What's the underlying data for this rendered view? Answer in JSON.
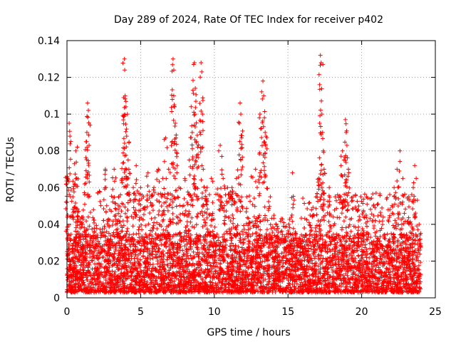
{
  "chart_data": {
    "type": "scatter",
    "title": "Day 289 of 2024, Rate Of TEC Index for receiver p402",
    "xlabel": "GPS time / hours",
    "ylabel": "ROTI / TECUs",
    "xlim": [
      0,
      25
    ],
    "ylim": [
      0,
      0.14
    ],
    "x_ticks": [
      0,
      5,
      10,
      15,
      20,
      25
    ],
    "x_tick_labels": [
      "0",
      "5",
      "10",
      "15",
      "20",
      "25"
    ],
    "y_ticks": [
      0,
      0.02,
      0.04,
      0.06,
      0.08,
      0.1,
      0.12,
      0.14
    ],
    "y_tick_labels": [
      "0",
      "0.02",
      "0.04",
      "0.06",
      "0.08",
      "0.1",
      "0.12",
      "0.14"
    ],
    "grid": true,
    "marker": "+",
    "color": "#ff0000",
    "x_data_range": [
      0,
      24
    ],
    "series": [
      {
        "name": "ROTI",
        "points": [
          [
            0.02,
            0.066
          ],
          [
            0.05,
            0.065
          ],
          [
            0.15,
            0.095
          ],
          [
            0.2,
            0.088
          ],
          [
            0.4,
            0.055
          ],
          [
            0.5,
            0.073
          ],
          [
            0.55,
            0.062
          ],
          [
            0.6,
            0.08
          ],
          [
            0.7,
            0.082
          ],
          [
            0.8,
            0.047
          ],
          [
            1.0,
            0.04
          ],
          [
            1.2,
            0.062
          ],
          [
            1.3,
            0.085
          ],
          [
            1.35,
            0.09
          ],
          [
            1.4,
            0.106
          ],
          [
            1.45,
            0.102
          ],
          [
            1.5,
            0.083
          ],
          [
            1.8,
            0.048
          ],
          [
            2.2,
            0.058
          ],
          [
            2.6,
            0.07
          ],
          [
            2.65,
            0.06
          ],
          [
            2.9,
            0.048
          ],
          [
            3.2,
            0.07
          ],
          [
            3.5,
            0.055
          ],
          [
            3.75,
            0.065
          ],
          [
            3.85,
            0.109
          ],
          [
            3.9,
            0.13
          ],
          [
            3.92,
            0.124
          ],
          [
            3.95,
            0.11
          ],
          [
            4.0,
            0.104
          ],
          [
            4.05,
            0.088
          ],
          [
            4.1,
            0.1
          ],
          [
            4.15,
            0.075
          ],
          [
            4.2,
            0.07
          ],
          [
            4.5,
            0.06
          ],
          [
            4.7,
            0.072
          ],
          [
            5.0,
            0.06
          ],
          [
            5.2,
            0.055
          ],
          [
            5.5,
            0.068
          ],
          [
            5.9,
            0.06
          ],
          [
            6.2,
            0.07
          ],
          [
            6.5,
            0.065
          ],
          [
            6.7,
            0.087
          ],
          [
            6.9,
            0.07
          ],
          [
            7.1,
            0.073
          ],
          [
            7.15,
            0.108
          ],
          [
            7.2,
            0.13
          ],
          [
            7.25,
            0.124
          ],
          [
            7.3,
            0.104
          ],
          [
            7.35,
            0.095
          ],
          [
            7.4,
            0.087
          ],
          [
            7.6,
            0.06
          ],
          [
            8.0,
            0.065
          ],
          [
            8.3,
            0.075
          ],
          [
            8.5,
            0.09
          ],
          [
            8.55,
            0.113
          ],
          [
            8.6,
            0.127
          ],
          [
            8.65,
            0.128
          ],
          [
            8.7,
            0.1
          ],
          [
            8.75,
            0.107
          ],
          [
            8.8,
            0.085
          ],
          [
            8.9,
            0.078
          ],
          [
            9.1,
            0.128
          ],
          [
            9.15,
            0.123
          ],
          [
            9.2,
            0.1
          ],
          [
            9.25,
            0.07
          ],
          [
            9.5,
            0.06
          ],
          [
            9.8,
            0.065
          ],
          [
            10.3,
            0.08
          ],
          [
            10.4,
            0.083
          ],
          [
            10.6,
            0.065
          ],
          [
            10.9,
            0.06
          ],
          [
            11.2,
            0.06
          ],
          [
            11.5,
            0.065
          ],
          [
            11.7,
            0.095
          ],
          [
            11.75,
            0.106
          ],
          [
            11.8,
            0.1
          ],
          [
            11.85,
            0.087
          ],
          [
            12.2,
            0.055
          ],
          [
            12.5,
            0.066
          ],
          [
            12.8,
            0.07
          ],
          [
            13.1,
            0.1
          ],
          [
            13.15,
            0.092
          ],
          [
            13.3,
            0.118
          ],
          [
            13.35,
            0.11
          ],
          [
            13.4,
            0.098
          ],
          [
            13.45,
            0.09
          ],
          [
            13.5,
            0.088
          ],
          [
            13.8,
            0.055
          ],
          [
            14.2,
            0.04
          ],
          [
            14.8,
            0.032
          ],
          [
            15.3,
            0.068
          ],
          [
            15.6,
            0.03
          ],
          [
            16.1,
            0.038
          ],
          [
            16.5,
            0.045
          ],
          [
            16.9,
            0.055
          ],
          [
            17.1,
            0.065
          ],
          [
            17.15,
            0.095
          ],
          [
            17.2,
            0.132
          ],
          [
            17.25,
            0.128
          ],
          [
            17.3,
            0.1
          ],
          [
            17.35,
            0.09
          ],
          [
            17.4,
            0.08
          ],
          [
            17.45,
            0.07
          ],
          [
            17.8,
            0.06
          ],
          [
            18.2,
            0.055
          ],
          [
            18.6,
            0.072
          ],
          [
            18.7,
            0.08
          ],
          [
            18.8,
            0.075
          ],
          [
            18.9,
            0.097
          ],
          [
            18.95,
            0.09
          ],
          [
            19.0,
            0.083
          ],
          [
            19.1,
            0.07
          ],
          [
            19.4,
            0.055
          ],
          [
            19.8,
            0.05
          ],
          [
            20.3,
            0.045
          ],
          [
            20.8,
            0.05
          ],
          [
            21.3,
            0.045
          ],
          [
            21.8,
            0.048
          ],
          [
            22.2,
            0.06
          ],
          [
            22.4,
            0.07
          ],
          [
            22.6,
            0.08
          ],
          [
            22.8,
            0.065
          ],
          [
            23.2,
            0.055
          ],
          [
            23.5,
            0.06
          ],
          [
            23.6,
            0.072
          ],
          [
            23.7,
            0.065
          ],
          [
            23.9,
            0.04
          ]
        ],
        "baseline_band": {
          "description": "dense band of points spanning the full time range",
          "y_range": [
            0.003,
            0.035
          ],
          "x_range": [
            0,
            24
          ]
        }
      }
    ]
  }
}
